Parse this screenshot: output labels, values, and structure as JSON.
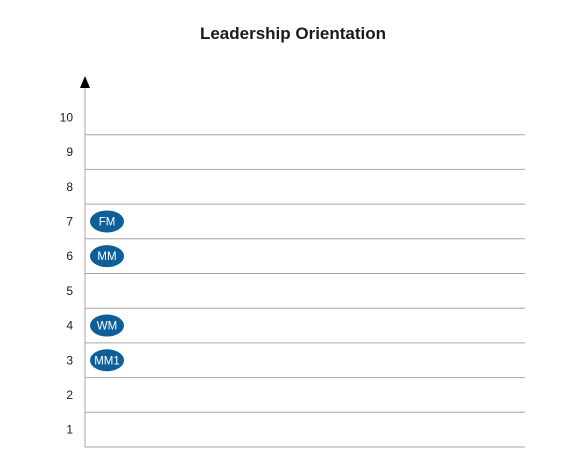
{
  "chart_data": {
    "type": "scatter",
    "title": "Leadership Orientation",
    "xlabel": "",
    "ylabel": "",
    "y_ticks": [
      "10",
      "9",
      "8",
      "7",
      "6",
      "5",
      "4",
      "3",
      "2",
      "1"
    ],
    "ylim": [
      1,
      10
    ],
    "grid": true,
    "legend": "none",
    "marker_color": "#0d5e99",
    "marker_text_color": "#ffffff",
    "points": [
      {
        "label": "FM",
        "y": 7
      },
      {
        "label": "MM",
        "y": 6
      },
      {
        "label": "WM",
        "y": 4
      },
      {
        "label": "MM1",
        "y": 3
      }
    ]
  }
}
